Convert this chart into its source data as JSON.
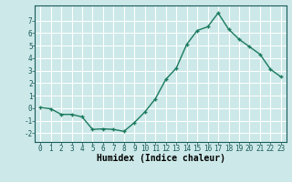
{
  "x": [
    0,
    1,
    2,
    3,
    4,
    5,
    6,
    7,
    8,
    9,
    10,
    11,
    12,
    13,
    14,
    15,
    16,
    17,
    18,
    19,
    20,
    21,
    22,
    23
  ],
  "y": [
    0.05,
    -0.05,
    -0.5,
    -0.5,
    -0.7,
    -1.7,
    -1.65,
    -1.7,
    -1.85,
    -1.15,
    -0.3,
    0.75,
    2.3,
    3.2,
    5.1,
    6.2,
    6.5,
    7.6,
    6.3,
    5.5,
    4.9,
    4.3,
    3.1,
    2.5
  ],
  "line_color": "#1a7a5e",
  "marker": "+",
  "marker_size": 3,
  "bg_color": "#cce8e8",
  "grid_color": "#ffffff",
  "xlabel": "Humidex (Indice chaleur)",
  "xlim": [
    -0.5,
    23.5
  ],
  "ylim": [
    -2.7,
    8.2
  ],
  "yticks": [
    -2,
    -1,
    0,
    1,
    2,
    3,
    4,
    5,
    6,
    7
  ],
  "xticks": [
    0,
    1,
    2,
    3,
    4,
    5,
    6,
    7,
    8,
    9,
    10,
    11,
    12,
    13,
    14,
    15,
    16,
    17,
    18,
    19,
    20,
    21,
    22,
    23
  ],
  "tick_label_fontsize": 5.5,
  "xlabel_fontsize": 7,
  "line_width": 1.0,
  "marker_edge_width": 1.0
}
